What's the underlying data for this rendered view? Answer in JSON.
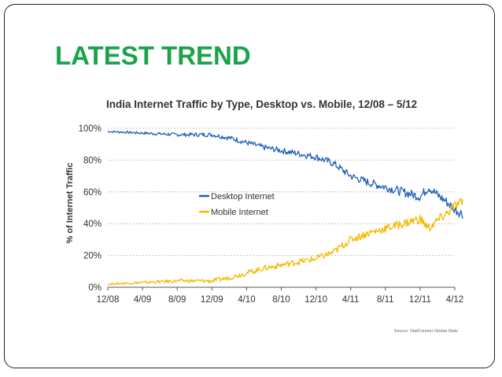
{
  "slide": {
    "title": "LATEST TREND"
  },
  "chart_data": {
    "type": "line",
    "title": "India Internet Traffic by Type, Desktop vs. Mobile, 12/08 – 5/12",
    "ylabel": "% of Internet Traffic",
    "xlabel": "",
    "ylim": [
      0,
      100
    ],
    "yticks": [
      "0%",
      "20%",
      "40%",
      "60%",
      "80%",
      "100%"
    ],
    "ytick_values": [
      0,
      20,
      40,
      60,
      80,
      100
    ],
    "xticks": [
      "12/08",
      "4/09",
      "8/09",
      "12/09",
      "4/10",
      "8/10",
      "12/10",
      "4/11",
      "8/11",
      "12/11",
      "4/12"
    ],
    "grid": true,
    "legend_position": "center-left",
    "source": "Source: StatCounter Global Stats",
    "series": [
      {
        "name": "Desktop Internet",
        "color": "#1f5fb8",
        "x": [
          "12/08",
          "4/09",
          "8/09",
          "12/09",
          "2/10",
          "4/10",
          "6/10",
          "8/10",
          "10/10",
          "12/10",
          "2/11",
          "4/11",
          "6/11",
          "8/11",
          "10/11",
          "12/11",
          "1/12",
          "2/12",
          "3/12",
          "4/12",
          "5/12"
        ],
        "values": [
          98,
          97,
          96,
          96,
          94,
          91,
          88,
          86,
          84,
          82,
          78,
          70,
          66,
          63,
          60,
          57,
          63,
          58,
          54,
          49,
          46
        ]
      },
      {
        "name": "Mobile Internet",
        "color": "#f5b800",
        "x": [
          "12/08",
          "4/09",
          "8/09",
          "12/09",
          "2/10",
          "4/10",
          "6/10",
          "8/10",
          "10/10",
          "12/10",
          "2/11",
          "4/11",
          "6/11",
          "8/11",
          "10/11",
          "12/11",
          "1/12",
          "2/12",
          "3/12",
          "4/12",
          "5/12"
        ],
        "values": [
          2,
          3,
          4,
          4,
          6,
          9,
          12,
          14,
          16,
          18,
          22,
          30,
          34,
          37,
          40,
          43,
          37,
          42,
          46,
          51,
          54
        ]
      }
    ]
  }
}
